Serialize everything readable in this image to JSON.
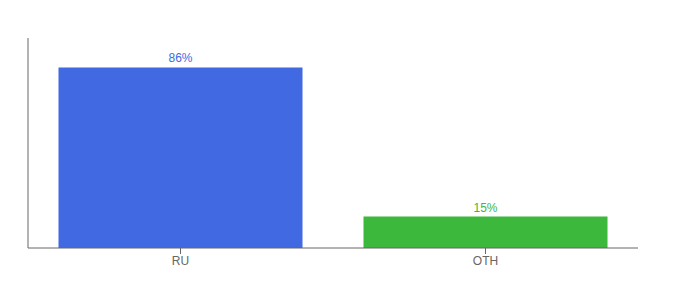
{
  "chart_data": {
    "type": "bar",
    "categories": [
      "RU",
      "OTH"
    ],
    "values": [
      86,
      15
    ],
    "value_labels": [
      "86%",
      "15%"
    ],
    "data_labels": true,
    "colors": [
      "#4169e1",
      "#3cb83c"
    ],
    "ylim": [
      0,
      100
    ],
    "grid": false,
    "tick_labels": "x"
  }
}
